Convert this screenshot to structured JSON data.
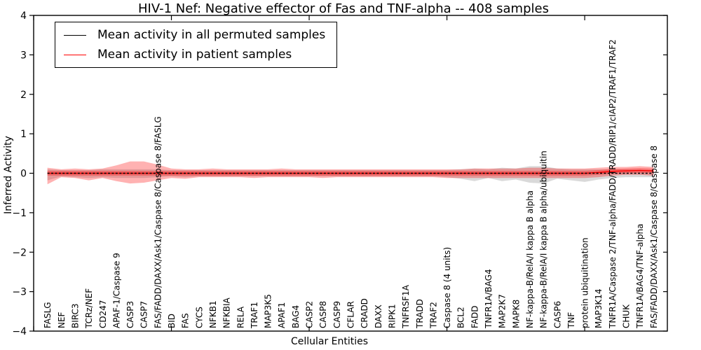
{
  "title": "HIV-1 Nef: Negative effector of Fas and TNF-alpha -- 408 samples",
  "legend": {
    "entries": [
      {
        "label": "Mean activity in all permuted samples",
        "color": "#000000"
      },
      {
        "label": "Mean activity in patient samples",
        "color": "#ff0000"
      }
    ]
  },
  "axes": {
    "ylabel": "Inferred Activity",
    "xlabel": "Cellular Entities",
    "ytick_values": [
      4,
      3,
      2,
      1,
      0,
      -1,
      -2,
      -3,
      -4
    ],
    "ytick_labels": [
      "4",
      "3",
      "2",
      "1",
      "0",
      "−1",
      "−2",
      "−3",
      "−4"
    ]
  },
  "chart_data": {
    "type": "line",
    "title": "HIV-1 Nef: Negative effector of Fas and TNF-alpha -- 408 samples",
    "xlabel": "Cellular Entities",
    "ylabel": "Inferred Activity",
    "ylim": [
      -4,
      4
    ],
    "grid": false,
    "legend_position": "upper left",
    "x_major_ticks": [
      0,
      10,
      20,
      30,
      40
    ],
    "categories": [
      "FASLG",
      "NEF",
      "BIRC3",
      "TCRz/NEF",
      "CD247",
      "APAF-1/Caspase 9",
      "CASP3",
      "CASP7",
      "FAS/FADD/DAXX/Ask1/Caspase 8/Caspase 8/FASLG",
      "BID",
      "FAS",
      "CYCS",
      "NFKB1",
      "NFKBIA",
      "RELA",
      "TRAF1",
      "MAP3K5",
      "APAF1",
      "BAG4",
      "CASP2",
      "CASP8",
      "CASP9",
      "CFLAR",
      "CRADD",
      "DAXX",
      "RIPK1",
      "TNFRSF1A",
      "TRADD",
      "TRAF2",
      "Caspase 8 (4 units)",
      "BCL2",
      "FADD",
      "TNFR1A/BAG4",
      "MAP2K7",
      "MAPK8",
      "NF-kappa-B/RelA/I kappa B alpha",
      "NF-kappa-B/RelA/I kappa B alpha/ubiquitin",
      "CASP6",
      "TNF",
      "protein ubiquitination",
      "MAP3K14",
      "TNFR1A/Caspase 2/TNF-alpha/FADD/TRADD/RIP1/cIAP2/TRAF1/TRAF2",
      "CHUK",
      "TNFR1A/BAG4/TNF-alpha",
      "FAS/FADD/DAXX/Ask1/Caspase 8/Caspase 8"
    ],
    "series": [
      {
        "name": "Mean activity in all permuted samples",
        "color": "#000000",
        "style": "dashed",
        "values": [
          0,
          0,
          0,
          0,
          0,
          0,
          0,
          0,
          0,
          0,
          0,
          0,
          0,
          0,
          0,
          0,
          0,
          0,
          0,
          0,
          0,
          0,
          0,
          0,
          0,
          0,
          0,
          0,
          0,
          0,
          0,
          0,
          0,
          0,
          0,
          0,
          0,
          0,
          0,
          0,
          0,
          0,
          0,
          0,
          0
        ]
      },
      {
        "name": "Mean activity in patient samples",
        "color": "#ff0000",
        "style": "solid",
        "values": [
          0,
          0,
          0,
          0,
          0,
          0,
          0,
          0,
          0,
          0,
          0,
          0,
          0,
          0,
          0,
          0,
          0,
          0,
          0,
          0,
          0,
          0,
          0,
          0,
          0,
          0,
          0,
          0,
          0,
          0,
          0,
          0,
          0,
          0,
          0,
          0,
          0,
          0,
          0,
          0,
          0.02,
          0.05,
          0.06,
          0.07,
          0.06
        ]
      }
    ],
    "bands": [
      {
        "name": "permuted-samples-range",
        "color": "rgba(0,0,0,0.15)",
        "upper": [
          0.1,
          0.08,
          0.08,
          0.08,
          0.1,
          0.1,
          0.1,
          0.1,
          0.1,
          0.08,
          0.08,
          0.08,
          0.08,
          0.08,
          0.08,
          0.08,
          0.08,
          0.08,
          0.08,
          0.08,
          0.08,
          0.08,
          0.08,
          0.08,
          0.08,
          0.08,
          0.08,
          0.08,
          0.08,
          0.08,
          0.1,
          0.12,
          0.1,
          0.14,
          0.12,
          0.18,
          0.18,
          0.12,
          0.1,
          0.1,
          0.1,
          0.1,
          0.1,
          0.1,
          0.08
        ],
        "lower": [
          -0.18,
          -0.08,
          -0.1,
          -0.12,
          -0.1,
          -0.12,
          -0.12,
          -0.12,
          -0.1,
          -0.08,
          -0.1,
          -0.08,
          -0.08,
          -0.08,
          -0.08,
          -0.08,
          -0.08,
          -0.08,
          -0.08,
          -0.08,
          -0.08,
          -0.08,
          -0.08,
          -0.08,
          -0.08,
          -0.08,
          -0.08,
          -0.08,
          -0.08,
          -0.1,
          -0.14,
          -0.2,
          -0.12,
          -0.2,
          -0.16,
          -0.24,
          -0.26,
          -0.14,
          -0.18,
          -0.22,
          -0.16,
          -0.12,
          -0.1,
          -0.1,
          -0.1
        ]
      },
      {
        "name": "patient-samples-range-outer",
        "color": "rgba(255,0,0,0.30)",
        "upper": [
          0.14,
          0.1,
          0.12,
          0.1,
          0.12,
          0.2,
          0.3,
          0.3,
          0.22,
          0.12,
          0.1,
          0.1,
          0.12,
          0.1,
          0.1,
          0.1,
          0.1,
          0.12,
          0.1,
          0.1,
          0.1,
          0.1,
          0.1,
          0.1,
          0.1,
          0.1,
          0.1,
          0.1,
          0.1,
          0.1,
          0.1,
          0.12,
          0.12,
          0.12,
          0.12,
          0.14,
          0.14,
          0.12,
          0.12,
          0.12,
          0.14,
          0.16,
          0.16,
          0.18,
          0.16
        ],
        "lower": [
          -0.28,
          -0.1,
          -0.12,
          -0.18,
          -0.12,
          -0.2,
          -0.26,
          -0.24,
          -0.18,
          -0.12,
          -0.14,
          -0.1,
          -0.1,
          -0.1,
          -0.1,
          -0.12,
          -0.1,
          -0.1,
          -0.1,
          -0.1,
          -0.12,
          -0.1,
          -0.1,
          -0.1,
          -0.1,
          -0.1,
          -0.1,
          -0.1,
          -0.1,
          -0.12,
          -0.12,
          -0.12,
          -0.12,
          -0.12,
          -0.12,
          -0.12,
          -0.12,
          -0.12,
          -0.12,
          -0.12,
          -0.1,
          -0.06,
          -0.04,
          -0.04,
          -0.06
        ]
      },
      {
        "name": "patient-samples-range-inner",
        "color": "rgba(255,0,0,0.30)",
        "upper": [
          0.06,
          0.06,
          0.06,
          0.06,
          0.06,
          0.06,
          0.06,
          0.06,
          0.06,
          0.06,
          0.06,
          0.06,
          0.06,
          0.06,
          0.06,
          0.06,
          0.06,
          0.06,
          0.06,
          0.06,
          0.06,
          0.06,
          0.06,
          0.06,
          0.06,
          0.06,
          0.06,
          0.06,
          0.06,
          0.06,
          0.06,
          0.06,
          0.06,
          0.06,
          0.06,
          0.06,
          0.06,
          0.06,
          0.06,
          0.06,
          0.08,
          0.11,
          0.12,
          0.13,
          0.12
        ],
        "lower": [
          -0.06,
          -0.06,
          -0.06,
          -0.06,
          -0.06,
          -0.06,
          -0.06,
          -0.06,
          -0.06,
          -0.06,
          -0.06,
          -0.06,
          -0.06,
          -0.06,
          -0.06,
          -0.06,
          -0.06,
          -0.06,
          -0.06,
          -0.06,
          -0.06,
          -0.06,
          -0.06,
          -0.06,
          -0.06,
          -0.06,
          -0.06,
          -0.06,
          -0.06,
          -0.06,
          -0.06,
          -0.06,
          -0.06,
          -0.06,
          -0.06,
          -0.06,
          -0.06,
          -0.06,
          -0.06,
          -0.06,
          -0.04,
          -0.01,
          0.0,
          0.01,
          0.0
        ]
      }
    ]
  }
}
